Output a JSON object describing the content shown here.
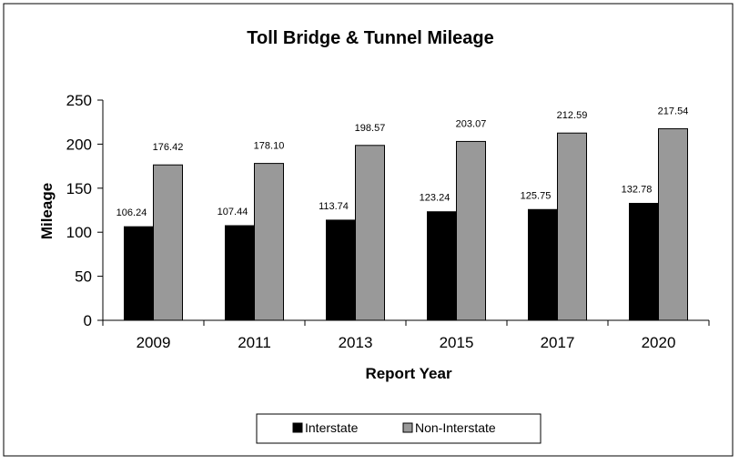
{
  "chart_data": {
    "type": "bar",
    "title": "Toll Bridge & Tunnel Mileage",
    "xlabel": "Report Year",
    "ylabel": "Mileage",
    "categories": [
      "2009",
      "2011",
      "2013",
      "2015",
      "2017",
      "2020"
    ],
    "series": [
      {
        "name": "Interstate",
        "color": "#000000",
        "values": [
          106.24,
          107.44,
          113.74,
          123.24,
          125.75,
          132.78
        ],
        "labels": [
          "106.24",
          "107.44",
          "113.74",
          "123.24",
          "125.75",
          "132.78"
        ]
      },
      {
        "name": "Non-Interstate",
        "color": "#999999",
        "values": [
          176.42,
          178.1,
          198.57,
          203.07,
          212.59,
          217.54
        ],
        "labels": [
          "176.42",
          "178.10",
          "198.57",
          "203.07",
          "212.59",
          "217.54"
        ]
      }
    ],
    "ylim": [
      0,
      250
    ],
    "yticks": [
      "0",
      "50",
      "100",
      "150",
      "200",
      "250"
    ],
    "legend_position": "bottom-center",
    "grid": false
  }
}
